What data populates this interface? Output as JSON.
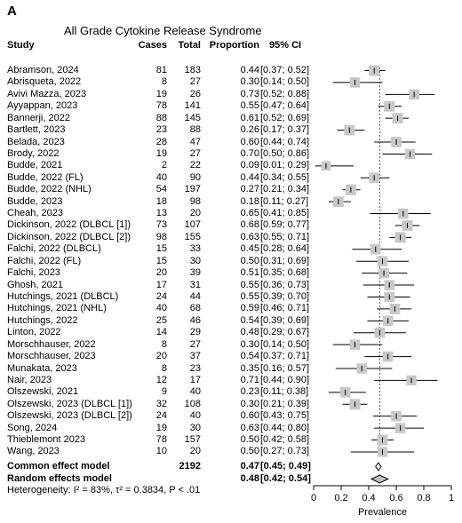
{
  "panel_label": "A",
  "title": "All Grade Cytokine Release Syndrome",
  "columns": {
    "study": "Study",
    "cases": "Cases",
    "total": "Total",
    "proportion": "Proportion",
    "ci": "95% CI"
  },
  "chart_data": {
    "type": "forest",
    "xlabel": "Prevalence",
    "xlim": [
      0,
      1
    ],
    "ticks": [
      "0",
      "0.2",
      "0.4",
      "0.6",
      "0.8",
      "1"
    ],
    "tick_values": [
      0,
      0.2,
      0.4,
      0.6,
      0.8,
      1
    ],
    "reference_line": 0.48,
    "studies": [
      {
        "study": "Abramson, 2024",
        "cases": "81",
        "total": "183",
        "prop": "0.44",
        "ci": "[0.37; 0.52]",
        "p": 0.44,
        "lo": 0.37,
        "hi": 0.52,
        "w": 0.6
      },
      {
        "study": "Abrisqueta, 2022",
        "cases": "8",
        "total": "27",
        "prop": "0.30",
        "ci": "[0.14; 0.50]",
        "p": 0.3,
        "lo": 0.14,
        "hi": 0.5,
        "w": 0.55
      },
      {
        "study": "Avivi Mazza, 2023",
        "cases": "19",
        "total": "26",
        "prop": "0.73",
        "ci": "[0.52; 0.88]",
        "p": 0.73,
        "lo": 0.52,
        "hi": 0.88,
        "w": 0.55
      },
      {
        "study": "Ayyappan, 2023",
        "cases": "78",
        "total": "141",
        "prop": "0.55",
        "ci": "[0.47; 0.64]",
        "p": 0.55,
        "lo": 0.47,
        "hi": 0.64,
        "w": 0.6
      },
      {
        "study": "Bannerji, 2022",
        "cases": "88",
        "total": "145",
        "prop": "0.61",
        "ci": "[0.52; 0.69]",
        "p": 0.61,
        "lo": 0.52,
        "hi": 0.69,
        "w": 0.6
      },
      {
        "study": "Bartlett, 2023",
        "cases": "23",
        "total": "88",
        "prop": "0.26",
        "ci": "[0.17; 0.37]",
        "p": 0.26,
        "lo": 0.17,
        "hi": 0.37,
        "w": 0.58
      },
      {
        "study": "Belada, 2023",
        "cases": "28",
        "total": "47",
        "prop": "0.60",
        "ci": "[0.44; 0.74]",
        "p": 0.6,
        "lo": 0.44,
        "hi": 0.74,
        "w": 0.57
      },
      {
        "study": "Brody, 2022",
        "cases": "19",
        "total": "27",
        "prop": "0.70",
        "ci": "[0.50; 0.86]",
        "p": 0.7,
        "lo": 0.5,
        "hi": 0.86,
        "w": 0.55
      },
      {
        "study": "Budde, 2021",
        "cases": "2",
        "total": "22",
        "prop": "0.09",
        "ci": "[0.01; 0.29]",
        "p": 0.09,
        "lo": 0.01,
        "hi": 0.29,
        "w": 0.45
      },
      {
        "study": "Budde, 2022 (FL)",
        "cases": "40",
        "total": "90",
        "prop": "0.44",
        "ci": "[0.34; 0.55]",
        "p": 0.44,
        "lo": 0.34,
        "hi": 0.55,
        "w": 0.58
      },
      {
        "study": "Budde, 2022 (NHL)",
        "cases": "54",
        "total": "197",
        "prop": "0.27",
        "ci": "[0.21; 0.34]",
        "p": 0.27,
        "lo": 0.21,
        "hi": 0.34,
        "w": 0.6
      },
      {
        "study": "Budde, 2023",
        "cases": "18",
        "total": "98",
        "prop": "0.18",
        "ci": "[0.11; 0.27]",
        "p": 0.18,
        "lo": 0.11,
        "hi": 0.27,
        "w": 0.58
      },
      {
        "study": "Cheah, 2023",
        "cases": "13",
        "total": "20",
        "prop": "0.65",
        "ci": "[0.41; 0.85]",
        "p": 0.65,
        "lo": 0.41,
        "hi": 0.85,
        "w": 0.55
      },
      {
        "study": "Dickinson, 2022 (DLBCL [1])",
        "cases": "73",
        "total": "107",
        "prop": "0.68",
        "ci": "[0.59; 0.77]",
        "p": 0.68,
        "lo": 0.59,
        "hi": 0.77,
        "w": 0.6
      },
      {
        "study": "Dickinson, 2022 (DLBCL [2])",
        "cases": "98",
        "total": "155",
        "prop": "0.63",
        "ci": "[0.55; 0.71]",
        "p": 0.63,
        "lo": 0.55,
        "hi": 0.71,
        "w": 0.6
      },
      {
        "study": "Falchi, 2022 (DLBCL)",
        "cases": "15",
        "total": "33",
        "prop": "0.45",
        "ci": "[0.28; 0.64]",
        "p": 0.45,
        "lo": 0.28,
        "hi": 0.64,
        "w": 0.55
      },
      {
        "study": "Falchi, 2022 (FL)",
        "cases": "15",
        "total": "30",
        "prop": "0.50",
        "ci": "[0.31; 0.69]",
        "p": 0.5,
        "lo": 0.31,
        "hi": 0.69,
        "w": 0.55
      },
      {
        "study": "Falchi, 2023",
        "cases": "20",
        "total": "39",
        "prop": "0.51",
        "ci": "[0.35; 0.68]",
        "p": 0.51,
        "lo": 0.35,
        "hi": 0.68,
        "w": 0.56
      },
      {
        "study": "Ghosh, 2021",
        "cases": "17",
        "total": "31",
        "prop": "0.55",
        "ci": "[0.36; 0.73]",
        "p": 0.55,
        "lo": 0.36,
        "hi": 0.73,
        "w": 0.55
      },
      {
        "study": "Hutchings, 2021 (DLBCL)",
        "cases": "24",
        "total": "44",
        "prop": "0.55",
        "ci": "[0.39; 0.70]",
        "p": 0.55,
        "lo": 0.39,
        "hi": 0.7,
        "w": 0.56
      },
      {
        "study": "Hutchings, 2021 (NHL)",
        "cases": "40",
        "total": "68",
        "prop": "0.59",
        "ci": "[0.46; 0.71]",
        "p": 0.59,
        "lo": 0.46,
        "hi": 0.71,
        "w": 0.58
      },
      {
        "study": "Hutchings, 2022",
        "cases": "25",
        "total": "46",
        "prop": "0.54",
        "ci": "[0.39; 0.69]",
        "p": 0.54,
        "lo": 0.39,
        "hi": 0.69,
        "w": 0.56
      },
      {
        "study": "Linton, 2022",
        "cases": "14",
        "total": "29",
        "prop": "0.48",
        "ci": "[0.29; 0.67]",
        "p": 0.48,
        "lo": 0.29,
        "hi": 0.67,
        "w": 0.55
      },
      {
        "study": "Morschhauser, 2022",
        "cases": "8",
        "total": "27",
        "prop": "0.30",
        "ci": "[0.14; 0.50]",
        "p": 0.3,
        "lo": 0.14,
        "hi": 0.5,
        "w": 0.55
      },
      {
        "study": "Morschhauser, 2023",
        "cases": "20",
        "total": "37",
        "prop": "0.54",
        "ci": "[0.37; 0.71]",
        "p": 0.54,
        "lo": 0.37,
        "hi": 0.71,
        "w": 0.56
      },
      {
        "study": "Munakata, 2023",
        "cases": "8",
        "total": "23",
        "prop": "0.35",
        "ci": "[0.16; 0.57]",
        "p": 0.35,
        "lo": 0.16,
        "hi": 0.57,
        "w": 0.54
      },
      {
        "study": "Nair, 2023",
        "cases": "12",
        "total": "17",
        "prop": "0.71",
        "ci": "[0.44; 0.90]",
        "p": 0.71,
        "lo": 0.44,
        "hi": 0.9,
        "w": 0.53
      },
      {
        "study": "Olszewski, 2021",
        "cases": "9",
        "total": "40",
        "prop": "0.23",
        "ci": "[0.11; 0.38]",
        "p": 0.23,
        "lo": 0.11,
        "hi": 0.38,
        "w": 0.56
      },
      {
        "study": "Olszewski, 2023 (DLBCL [1])",
        "cases": "32",
        "total": "108",
        "prop": "0.30",
        "ci": "[0.21; 0.39]",
        "p": 0.3,
        "lo": 0.21,
        "hi": 0.39,
        "w": 0.6
      },
      {
        "study": "Olszewski, 2023 (DLBCL [2])",
        "cases": "24",
        "total": "40",
        "prop": "0.60",
        "ci": "[0.43; 0.75]",
        "p": 0.6,
        "lo": 0.43,
        "hi": 0.75,
        "w": 0.56
      },
      {
        "study": "Song, 2024",
        "cases": "19",
        "total": "30",
        "prop": "0.63",
        "ci": "[0.44; 0.80]",
        "p": 0.63,
        "lo": 0.44,
        "hi": 0.8,
        "w": 0.55
      },
      {
        "study": "Thieblemont 2023",
        "cases": "78",
        "total": "157",
        "prop": "0.50",
        "ci": "[0.42; 0.58]",
        "p": 0.5,
        "lo": 0.42,
        "hi": 0.58,
        "w": 0.6
      },
      {
        "study": "Wang, 2023",
        "cases": "10",
        "total": "20",
        "prop": "0.50",
        "ci": "[0.27; 0.73]",
        "p": 0.5,
        "lo": 0.27,
        "hi": 0.73,
        "w": 0.54
      }
    ],
    "summaries": [
      {
        "label": "Common effect model",
        "total": "2192",
        "prop": "0.47",
        "ci": "[0.45; 0.49]",
        "p": 0.47,
        "lo": 0.45,
        "hi": 0.49,
        "fill": "#ffffff"
      },
      {
        "label": "Random effects model",
        "total": "",
        "prop": "0.48",
        "ci": "[0.42; 0.54]",
        "p": 0.48,
        "lo": 0.42,
        "hi": 0.54,
        "fill": "#bdbdbd"
      }
    ],
    "heterogeneity": "Heterogeneity: I² = 83%, τ² = 0.3834, P < .01"
  }
}
